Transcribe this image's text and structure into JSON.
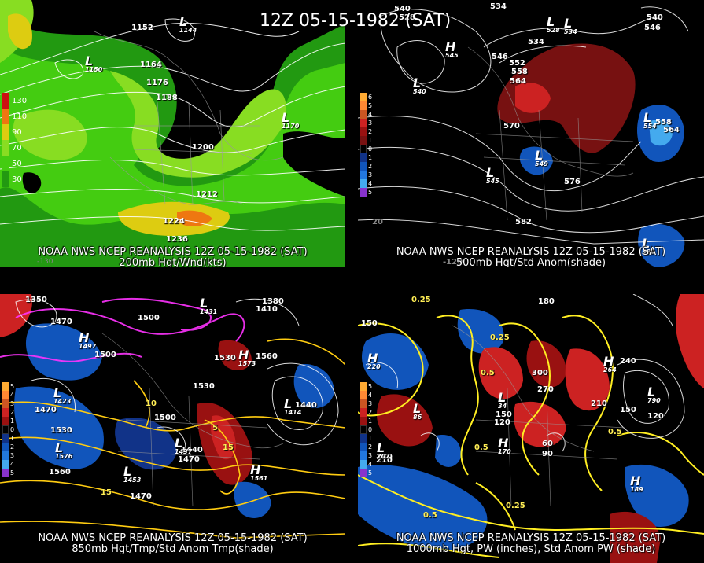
{
  "title": "12Z 05-15-1982 (SAT)",
  "panels": [
    {
      "caption_top": "NOAA NWS NCEP REANALYSIS 12Z 05-15-1982 (SAT)",
      "caption_bottom": "200mb Hgt/Wnd(kts)",
      "legend": [
        {
          "label": "130",
          "color": "#cc1111"
        },
        {
          "label": "110",
          "color": "#ee7711"
        },
        {
          "label": "90",
          "color": "#ddcc11"
        },
        {
          "label": "70",
          "color": "#88dd22"
        },
        {
          "label": "50",
          "color": "#44cc11"
        },
        {
          "label": "30",
          "color": "#229911"
        }
      ],
      "contours": [
        "1152",
        "1164",
        "1176",
        "1188",
        "1200",
        "1212",
        "1224",
        "1236"
      ],
      "lows": [
        {
          "symbol": "L",
          "value": "1144"
        },
        {
          "symbol": "L",
          "value": "1150"
        },
        {
          "symbol": "L",
          "value": "1170"
        }
      ],
      "corner": "-130"
    },
    {
      "caption_top": "NOAA NWS NCEP REANALYSIS 12Z 05-15-1982 (SAT)",
      "caption_bottom": "500mb Hgt/Std Anom(shade)",
      "legend": [
        {
          "label": "6",
          "color": "#ffaa33"
        },
        {
          "label": "5",
          "color": "#ff8833"
        },
        {
          "label": "4",
          "color": "#cc5522"
        },
        {
          "label": "3",
          "color": "#cc2222"
        },
        {
          "label": "2",
          "color": "#991111"
        },
        {
          "label": "1",
          "color": "#771111"
        },
        {
          "label": "0",
          "color": "#000000"
        },
        {
          "label": "1",
          "color": "#113388"
        },
        {
          "label": "2",
          "color": "#1155bb"
        },
        {
          "label": "3",
          "color": "#2277dd"
        },
        {
          "label": "4",
          "color": "#44aaee"
        },
        {
          "label": "5",
          "color": "#8833cc"
        }
      ],
      "contours": [
        "534",
        "540",
        "546",
        "552",
        "558",
        "564",
        "570",
        "576",
        "582",
        "540",
        "546",
        "528",
        "534"
      ],
      "systems": [
        {
          "symbol": "L",
          "value": "540"
        },
        {
          "symbol": "H",
          "value": "545"
        },
        {
          "symbol": "L",
          "value": "549"
        },
        {
          "symbol": "L",
          "value": "545"
        },
        {
          "symbol": "L",
          "value": "554"
        },
        {
          "symbol": "L",
          "value": "528"
        },
        {
          "symbol": "L",
          "value": "534"
        },
        {
          "symbol": "L",
          "value": "585"
        }
      ],
      "extra_labels": [
        "558",
        "564",
        "20",
        "-120"
      ]
    },
    {
      "caption_top": "NOAA NWS NCEP REANALYSIS 12Z 05-15-1982 (SAT)",
      "caption_bottom": "850mb Hgt/Tmp/Std Anom Tmp(shade)",
      "legend": [
        {
          "label": "5",
          "color": "#ffaa33"
        },
        {
          "label": "4",
          "color": "#ff8833"
        },
        {
          "label": "3",
          "color": "#cc5522"
        },
        {
          "label": "2",
          "color": "#cc2222"
        },
        {
          "label": "1",
          "color": "#991111"
        },
        {
          "label": "0",
          "color": "#000000"
        },
        {
          "label": "1",
          "color": "#113388"
        },
        {
          "label": "2",
          "color": "#1155bb"
        },
        {
          "label": "3",
          "color": "#2277dd"
        },
        {
          "label": "4",
          "color": "#44aaee"
        },
        {
          "label": "5",
          "color": "#8833cc"
        }
      ],
      "height_labels": [
        "1470",
        "1500",
        "1530",
        "1560",
        "1440",
        "1410",
        "1380",
        "1350",
        "1530",
        "1500",
        "1470",
        "1440",
        "1470",
        "1560",
        "1530",
        "1500",
        "1470"
      ],
      "temp_labels": [
        "15",
        "15",
        "10",
        "5"
      ],
      "systems": [
        {
          "symbol": "H",
          "value": "1497"
        },
        {
          "symbol": "L",
          "value": "1423"
        },
        {
          "symbol": "L",
          "value": "1576"
        },
        {
          "symbol": "H",
          "value": "1573"
        },
        {
          "symbol": "L",
          "value": "1414"
        },
        {
          "symbol": "L",
          "value": "1453"
        },
        {
          "symbol": "L",
          "value": "1437"
        },
        {
          "symbol": "L",
          "value": "1431"
        },
        {
          "symbol": "H",
          "value": "1561"
        }
      ]
    },
    {
      "caption_top": "NOAA NWS NCEP REANALYSIS 12Z 05-15-1982 (SAT)",
      "caption_bottom": "1000mb Hgt, PW (inches), Std Anom PW (shade)",
      "legend": [
        {
          "label": "5",
          "color": "#ffaa33"
        },
        {
          "label": "4",
          "color": "#ff8833"
        },
        {
          "label": "3",
          "color": "#cc5522"
        },
        {
          "label": "2",
          "color": "#cc2222"
        },
        {
          "label": "1",
          "color": "#991111"
        },
        {
          "label": "0",
          "color": "#000000"
        },
        {
          "label": "1",
          "color": "#113388"
        },
        {
          "label": "2",
          "color": "#1155bb"
        },
        {
          "label": "3",
          "color": "#2277dd"
        },
        {
          "label": "4",
          "color": "#44aaee"
        },
        {
          "label": "5",
          "color": "#8833cc"
        }
      ],
      "height_labels": [
        "150",
        "180",
        "210",
        "240",
        "270",
        "300",
        "120",
        "90",
        "60",
        "150",
        "180",
        "210",
        "150",
        "120"
      ],
      "pw_labels": [
        "0.25",
        "0.25",
        "0.5",
        "0.5",
        "0.5",
        "0.25",
        "0.5"
      ],
      "systems": [
        {
          "symbol": "H",
          "value": "220"
        },
        {
          "symbol": "L",
          "value": "86"
        },
        {
          "symbol": "L",
          "value": "790"
        },
        {
          "symbol": "H",
          "value": "264"
        },
        {
          "symbol": "L",
          "value": "34"
        },
        {
          "symbol": "H",
          "value": "170"
        },
        {
          "symbol": "H",
          "value": "189"
        },
        {
          "symbol": "L",
          "value": "207"
        }
      ]
    }
  ]
}
